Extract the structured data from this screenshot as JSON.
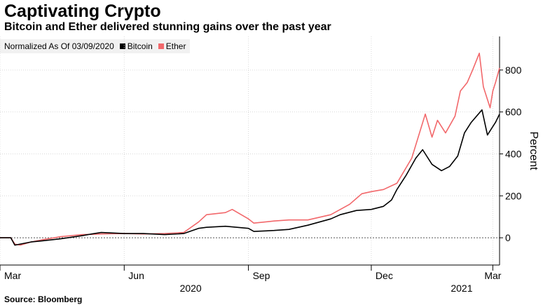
{
  "title": "Captivating Crypto",
  "subtitle": "Bitcoin and Ether delivered stunning gains over the past year",
  "legend": {
    "prefix": "Normalized As Of 03/09/2020",
    "series1": "Bitcoin",
    "series2": "Ether"
  },
  "source": "Source: Bloomberg",
  "colors": {
    "bitcoin": "#000000",
    "ether": "#f2686b",
    "grid": "#d9d9d9",
    "zero": "#555555"
  },
  "chart_data": {
    "type": "line",
    "ylabel": "Percent",
    "ylim": [
      -130,
      960
    ],
    "yticks": [
      0,
      200,
      400,
      600,
      800
    ],
    "xlim": [
      "2020-03-01",
      "2021-03-06"
    ],
    "xticks": [
      {
        "date": "2020-03-01",
        "label": "Mar",
        "year": ""
      },
      {
        "date": "2020-06-01",
        "label": "Jun",
        "year": ""
      },
      {
        "date": "2020-09-01",
        "label": "Sep",
        "year": "2020"
      },
      {
        "date": "2020-12-01",
        "label": "Dec",
        "year": ""
      },
      {
        "date": "2021-03-01",
        "label": "Mar",
        "year": "2021"
      }
    ],
    "grid": true,
    "series": [
      {
        "name": "Bitcoin",
        "x": [
          "2020-03-01",
          "2020-03-09",
          "2020-03-12",
          "2020-03-16",
          "2020-03-24",
          "2020-04-01",
          "2020-04-15",
          "2020-05-01",
          "2020-05-08",
          "2020-05-15",
          "2020-06-01",
          "2020-06-15",
          "2020-07-01",
          "2020-07-15",
          "2020-07-26",
          "2020-08-01",
          "2020-08-15",
          "2020-09-01",
          "2020-09-05",
          "2020-09-20",
          "2020-10-01",
          "2020-10-15",
          "2020-11-01",
          "2020-11-08",
          "2020-11-20",
          "2020-12-01",
          "2020-12-10",
          "2020-12-16",
          "2020-12-20",
          "2020-12-27",
          "2021-01-03",
          "2021-01-08",
          "2021-01-15",
          "2021-01-22",
          "2021-01-28",
          "2021-02-03",
          "2021-02-08",
          "2021-02-13",
          "2021-02-21",
          "2021-02-25",
          "2021-02-28",
          "2021-03-03",
          "2021-03-06"
        ],
        "values": [
          0,
          0,
          -35,
          -30,
          -20,
          -15,
          -5,
          10,
          18,
          25,
          20,
          20,
          15,
          20,
          45,
          50,
          55,
          45,
          30,
          35,
          40,
          60,
          90,
          110,
          130,
          135,
          150,
          180,
          230,
          300,
          380,
          420,
          350,
          320,
          340,
          390,
          500,
          550,
          610,
          490,
          520,
          550,
          590
        ]
      },
      {
        "name": "Ether",
        "x": [
          "2020-03-01",
          "2020-03-09",
          "2020-03-12",
          "2020-03-16",
          "2020-03-24",
          "2020-04-01",
          "2020-04-15",
          "2020-05-01",
          "2020-05-15",
          "2020-06-01",
          "2020-06-15",
          "2020-07-01",
          "2020-07-15",
          "2020-07-26",
          "2020-08-01",
          "2020-08-15",
          "2020-08-20",
          "2020-09-01",
          "2020-09-05",
          "2020-09-20",
          "2020-10-01",
          "2020-10-15",
          "2020-11-01",
          "2020-11-15",
          "2020-11-24",
          "2020-12-01",
          "2020-12-10",
          "2020-12-20",
          "2020-12-31",
          "2021-01-10",
          "2021-01-15",
          "2021-01-19",
          "2021-01-25",
          "2021-02-01",
          "2021-02-05",
          "2021-02-10",
          "2021-02-14",
          "2021-02-19",
          "2021-02-22",
          "2021-02-27",
          "2021-03-01",
          "2021-03-03",
          "2021-03-06"
        ],
        "values": [
          0,
          0,
          -30,
          -35,
          -20,
          -10,
          5,
          15,
          18,
          20,
          18,
          20,
          25,
          75,
          110,
          120,
          135,
          90,
          70,
          80,
          85,
          85,
          110,
          160,
          210,
          220,
          230,
          260,
          380,
          590,
          480,
          560,
          500,
          580,
          700,
          740,
          800,
          880,
          720,
          620,
          700,
          740,
          810
        ]
      }
    ]
  }
}
